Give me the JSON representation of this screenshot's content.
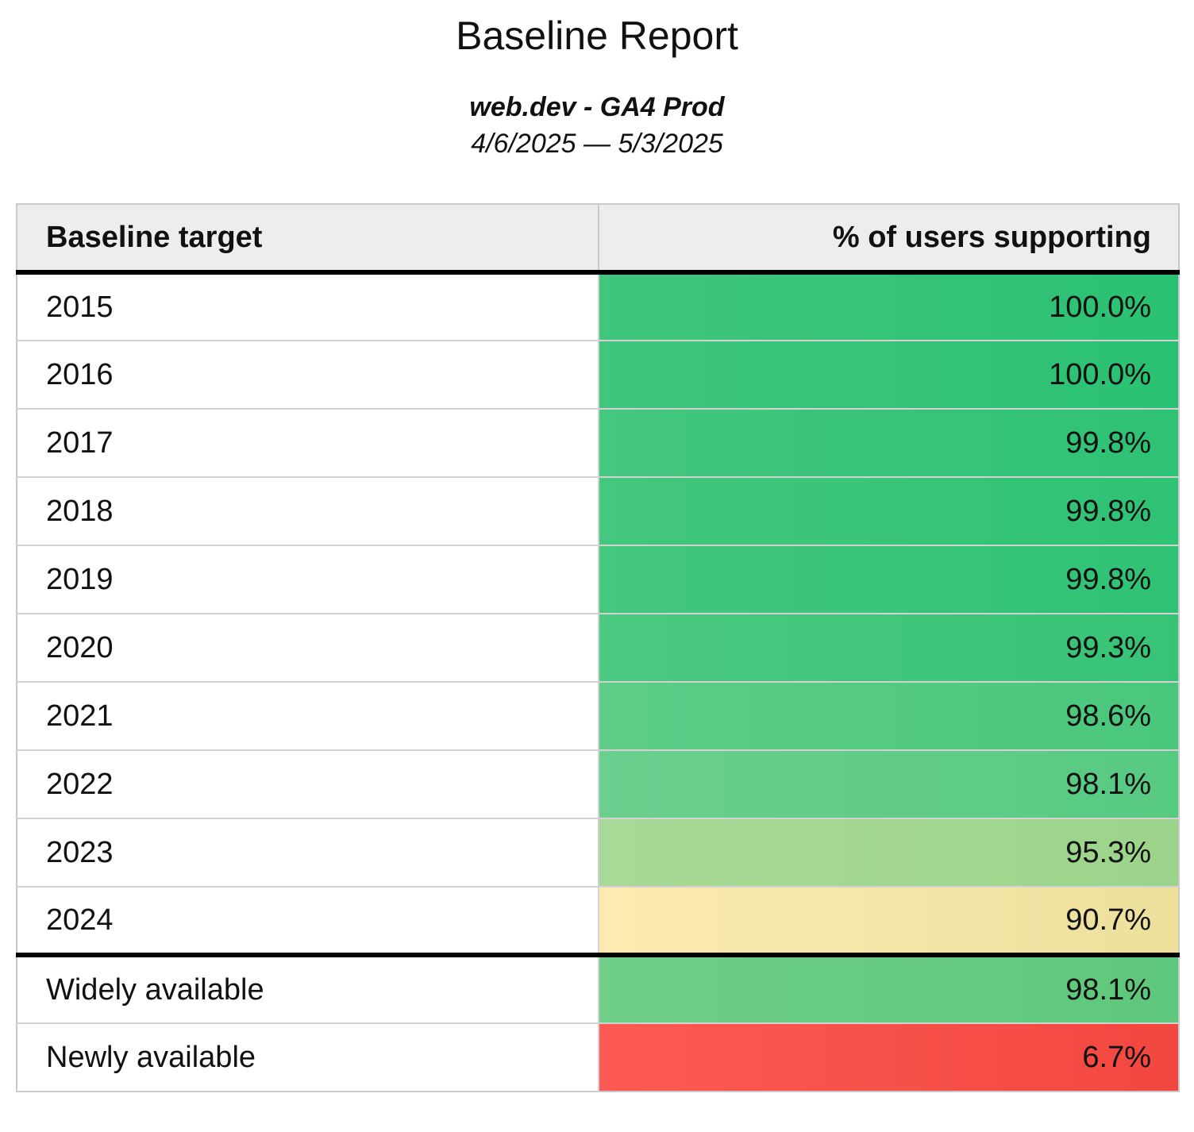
{
  "header": {
    "title": "Baseline Report",
    "subtitle": "web.dev - GA4 Prod",
    "date_range": "4/6/2025 — 5/3/2025"
  },
  "table": {
    "columns": [
      {
        "label": "Baseline target",
        "align": "left"
      },
      {
        "label": "% of users supporting",
        "align": "right"
      }
    ],
    "rows": [
      {
        "label": "2015",
        "value": "100.0%",
        "section": "years",
        "color_from": "#41c67c",
        "color_to": "#2ac172"
      },
      {
        "label": "2016",
        "value": "100.0%",
        "section": "years",
        "color_from": "#41c67c",
        "color_to": "#2ac172"
      },
      {
        "label": "2017",
        "value": "99.8%",
        "section": "years",
        "color_from": "#44c77e",
        "color_to": "#2ec274"
      },
      {
        "label": "2018",
        "value": "99.8%",
        "section": "years",
        "color_from": "#44c77e",
        "color_to": "#2ec274"
      },
      {
        "label": "2019",
        "value": "99.8%",
        "section": "years",
        "color_from": "#44c77e",
        "color_to": "#2ec274"
      },
      {
        "label": "2020",
        "value": "99.3%",
        "section": "years",
        "color_from": "#4bc980",
        "color_to": "#37c376"
      },
      {
        "label": "2021",
        "value": "98.6%",
        "section": "years",
        "color_from": "#5dcc87",
        "color_to": "#4ac77d"
      },
      {
        "label": "2022",
        "value": "98.1%",
        "section": "years",
        "color_from": "#6bcf8e",
        "color_to": "#57ca82"
      },
      {
        "label": "2023",
        "value": "95.3%",
        "section": "years",
        "color_from": "#a8d996",
        "color_to": "#9cd48b"
      },
      {
        "label": "2024",
        "value": "90.7%",
        "section": "years",
        "color_from": "#fdeab2",
        "color_to": "#ece09c"
      },
      {
        "label": "Widely available",
        "value": "98.1%",
        "section": "availability",
        "color_from": "#6fce87",
        "color_to": "#5ec87c"
      },
      {
        "label": "Newly available",
        "value": "6.7%",
        "section": "availability",
        "color_from": "#fd5a55",
        "color_to": "#f2473f"
      }
    ],
    "style": {
      "header_bg": "#ededed",
      "separator_color": "#d2d2d2",
      "outer_border_color": "#c9c9c9",
      "section_divider_color": "#000000",
      "text_color": "#111111"
    }
  },
  "chart_data": {
    "type": "table",
    "title": "Baseline Report",
    "subtitle": "web.dev - GA4 Prod",
    "date_range": "4/6/2025 — 5/3/2025",
    "columns": [
      "Baseline target",
      "% of users supporting"
    ],
    "categories": [
      "2015",
      "2016",
      "2017",
      "2018",
      "2019",
      "2020",
      "2021",
      "2022",
      "2023",
      "2024",
      "Widely available",
      "Newly available"
    ],
    "values": [
      100.0,
      100.0,
      99.8,
      99.8,
      99.8,
      99.3,
      98.6,
      98.1,
      95.3,
      90.7,
      98.1,
      6.7
    ],
    "value_unit": "%",
    "color_scale": {
      "high": "#2ac172",
      "mid": "#ece09c",
      "low": "#f2473f"
    }
  }
}
